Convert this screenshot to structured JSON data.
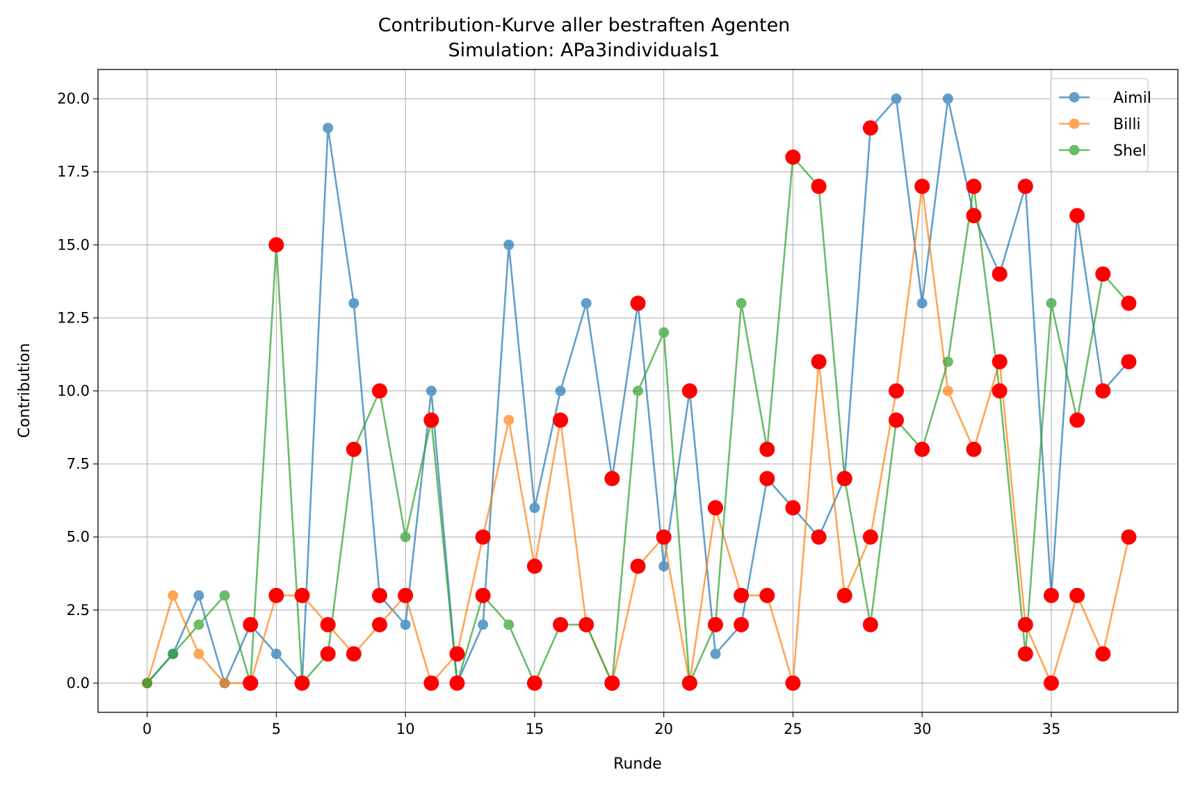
{
  "chart_data": {
    "type": "line",
    "title": "Contribution-Kurve aller bestraften Agenten",
    "subtitle": "Simulation: APa3individuals1",
    "xlabel": "Runde",
    "ylabel": "Contribution",
    "xlim": [
      -1.9,
      39.9
    ],
    "ylim": [
      -1.0,
      21.0
    ],
    "xticks": [
      0,
      5,
      10,
      15,
      20,
      25,
      30,
      35
    ],
    "xtick_labels": [
      "0",
      "5",
      "10",
      "15",
      "20",
      "25",
      "30",
      "35"
    ],
    "yticks": [
      0,
      2.5,
      5,
      7.5,
      10,
      12.5,
      15,
      17.5,
      20
    ],
    "ytick_labels": [
      "0.0",
      "2.5",
      "5.0",
      "7.5",
      "10.0",
      "12.5",
      "15.0",
      "17.5",
      "20.0"
    ],
    "grid": true,
    "legend_position": "top-right",
    "x": [
      0,
      1,
      2,
      3,
      4,
      5,
      6,
      7,
      8,
      9,
      10,
      11,
      12,
      13,
      14,
      15,
      16,
      17,
      18,
      19,
      20,
      21,
      22,
      23,
      24,
      25,
      26,
      27,
      28,
      29,
      30,
      31,
      32,
      33,
      34,
      35,
      36,
      37,
      38
    ],
    "series": [
      {
        "name": "Aimil",
        "color": "#1f77b4",
        "values": [
          0,
          1,
          3,
          0,
          2,
          1,
          0,
          19,
          13,
          3,
          2,
          10,
          0,
          2,
          15,
          6,
          10,
          13,
          7,
          13,
          4,
          10,
          1,
          2,
          7,
          6,
          5,
          7,
          19,
          20,
          13,
          20,
          16,
          14,
          17,
          3,
          16,
          10,
          11
        ],
        "punished": [
          false,
          false,
          false,
          false,
          true,
          false,
          false,
          false,
          false,
          true,
          false,
          false,
          false,
          false,
          false,
          false,
          false,
          false,
          true,
          true,
          false,
          true,
          false,
          true,
          true,
          true,
          true,
          true,
          true,
          false,
          false,
          false,
          true,
          true,
          true,
          true,
          true,
          true,
          true
        ]
      },
      {
        "name": "Billi",
        "color": "#ff7f0e",
        "values": [
          0,
          3,
          1,
          0,
          0,
          3,
          3,
          2,
          1,
          2,
          3,
          0,
          1,
          5,
          9,
          4,
          9,
          2,
          0,
          4,
          5,
          0,
          6,
          3,
          3,
          0,
          11,
          3,
          5,
          10,
          17,
          10,
          8,
          11,
          2,
          0,
          3,
          1,
          5
        ],
        "punished": [
          false,
          false,
          false,
          false,
          true,
          true,
          true,
          true,
          true,
          true,
          true,
          true,
          true,
          true,
          false,
          true,
          true,
          true,
          true,
          true,
          true,
          true,
          true,
          true,
          true,
          true,
          true,
          true,
          true,
          true,
          true,
          false,
          true,
          true,
          true,
          true,
          true,
          true,
          true
        ]
      },
      {
        "name": "Shel",
        "color": "#2ca02c",
        "values": [
          0,
          1,
          2,
          3,
          0,
          15,
          0,
          1,
          8,
          10,
          5,
          9,
          0,
          3,
          2,
          0,
          2,
          2,
          0,
          10,
          12,
          0,
          2,
          13,
          8,
          18,
          17,
          7,
          2,
          9,
          8,
          11,
          17,
          10,
          1,
          13,
          9,
          14,
          13
        ],
        "punished": [
          false,
          false,
          false,
          false,
          true,
          true,
          true,
          true,
          true,
          true,
          false,
          true,
          true,
          true,
          false,
          true,
          true,
          false,
          true,
          false,
          false,
          true,
          true,
          false,
          true,
          true,
          true,
          true,
          true,
          true,
          true,
          false,
          true,
          true,
          true,
          false,
          true,
          true,
          true
        ]
      }
    ],
    "punishment_marker_color": "#ff0000"
  }
}
